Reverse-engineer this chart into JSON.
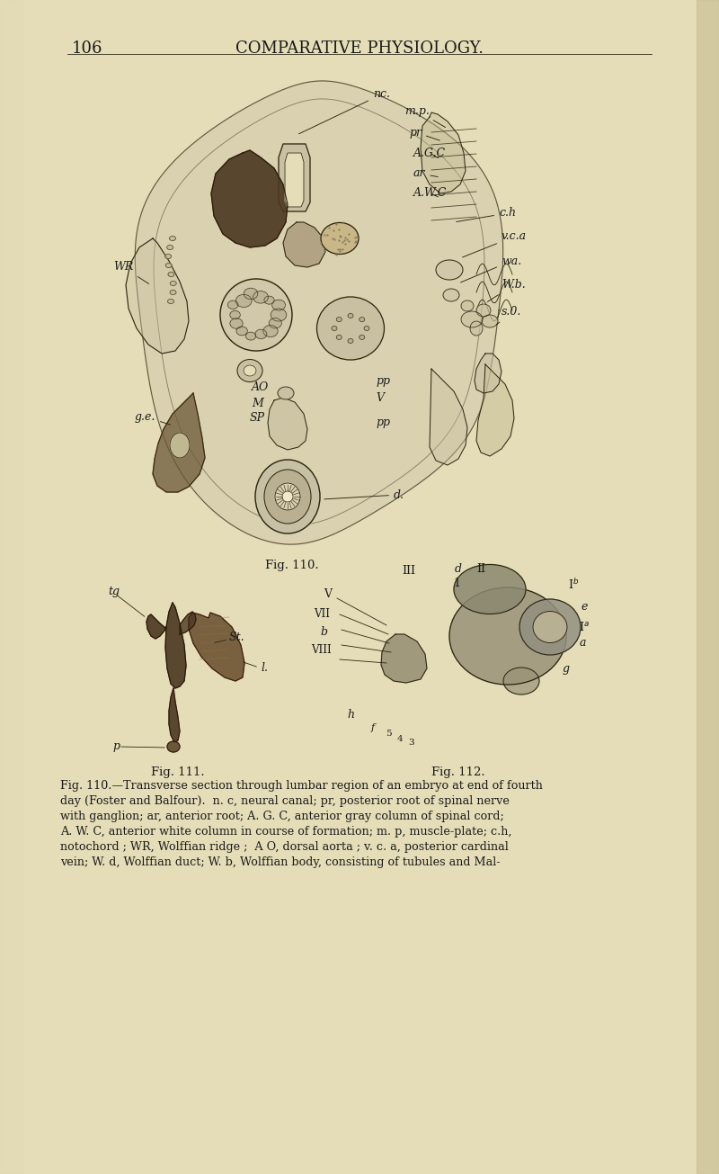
{
  "bg_color": "#e5ddb8",
  "text_color": "#1a1a1a",
  "line_color": "#2a2510",
  "dark_fill": "#3a3020",
  "mid_fill": "#7a6840",
  "light_fill": "#c8c0a0",
  "gray_fill": "#a8a088",
  "page_number": "106",
  "title_text": "COMPARATIVE PHYSIOLOGY.",
  "fig110_caption": "Fig. 110.",
  "fig111_caption": "Fig. 111.",
  "fig112_caption": "Fig. 112.",
  "caption_line1": "Fig. 110.—Transverse section through lumbar region of an embryo at end of fourth",
  "caption_line2": "day (Foster and Balfour).  n. c, neural canal; pr, posterior root of spinal nerve",
  "caption_line3": "with ganglion; ar, anterior root; A. G. C, anterior gray column of spinal cord;",
  "caption_line4": "A. W. C, anterior white column in course of formation; m. p, muscle-plate; c.h,",
  "caption_line5": "notochord ; WR, Wolffian ridge ;  A O, dorsal aorta ; v. c. a, posterior cardinal",
  "caption_line6": "vein; W. d, Wolffian duct; W. b, Wolffian body, consisting of tubules and Mal-",
  "header_fontsize": 13,
  "caption_fontsize": 9.2,
  "figcap_fontsize": 9.5
}
